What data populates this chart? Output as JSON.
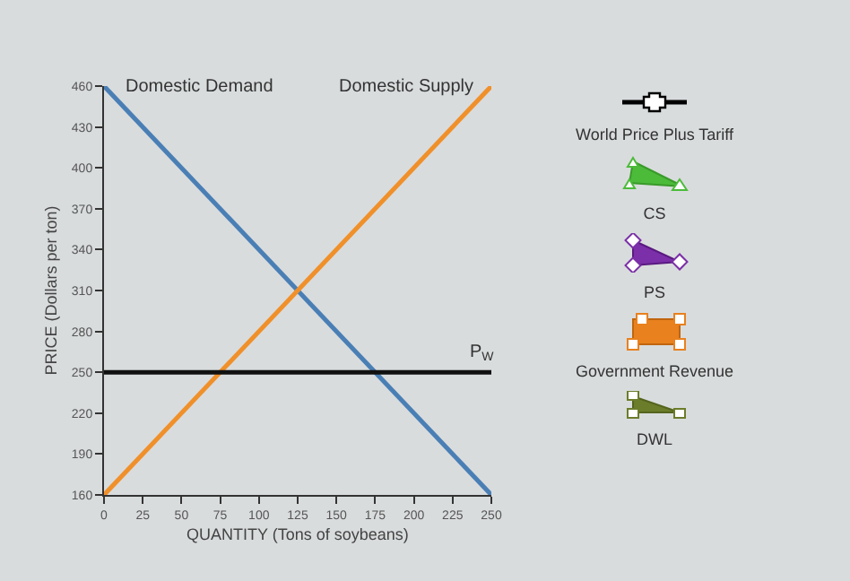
{
  "chart_data": {
    "type": "line",
    "xlabel": "QUANTITY (Tons of soybeans)",
    "ylabel": "PRICE (Dollars per ton)",
    "x": [
      0,
      250
    ],
    "series": [
      {
        "name": "Domestic Demand",
        "color": "#4a7fb5",
        "values": [
          460,
          160
        ]
      },
      {
        "name": "Domestic Supply",
        "color": "#f0902a",
        "values": [
          160,
          460
        ]
      },
      {
        "name": "P$_{W}$",
        "color": "#111111",
        "values": [
          250,
          250
        ]
      }
    ],
    "xlim": [
      0,
      250
    ],
    "xticks": [
      0,
      25,
      50,
      75,
      100,
      125,
      150,
      175,
      200,
      225,
      250
    ],
    "ylim": [
      160,
      460
    ],
    "yticks": [
      160,
      190,
      220,
      250,
      280,
      310,
      340,
      370,
      400,
      430,
      460
    ],
    "grid": false,
    "legend": false,
    "marker": "none",
    "line_style": "solid",
    "annotations": [
      "World Price Plus Tariff",
      "CS",
      "PS",
      "Government Revenue",
      "DWL"
    ]
  }
}
